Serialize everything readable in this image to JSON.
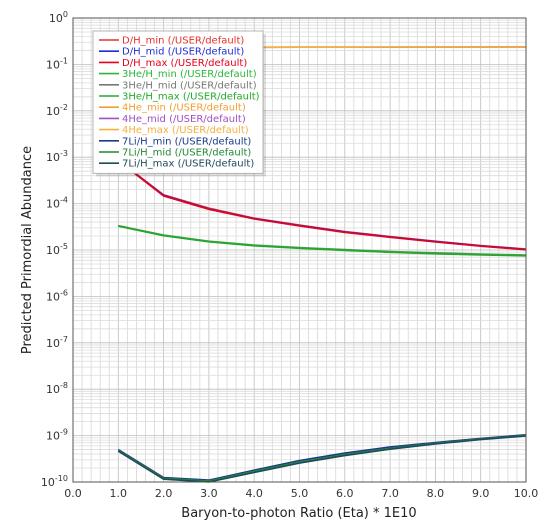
{
  "chart_data": {
    "type": "line",
    "xlabel": "Baryon-to-photon Ratio (Eta) * 1E10",
    "ylabel": "Predicted Primordial Abundance",
    "xlim": [
      0,
      10
    ],
    "ylim": [
      1e-10,
      1
    ],
    "yscale": "log",
    "grid": true,
    "legend_position": "top-left",
    "x_ticks": [
      "0.0",
      "1.0",
      "2.0",
      "3.0",
      "4.0",
      "5.0",
      "6.0",
      "7.0",
      "8.0",
      "9.0",
      "10.0"
    ],
    "y_ticks": [
      {
        "base": "10",
        "exp": "0"
      },
      {
        "base": "10",
        "exp": "-1"
      },
      {
        "base": "10",
        "exp": "-2"
      },
      {
        "base": "10",
        "exp": "-3"
      },
      {
        "base": "10",
        "exp": "-4"
      },
      {
        "base": "10",
        "exp": "-5"
      },
      {
        "base": "10",
        "exp": "-6"
      },
      {
        "base": "10",
        "exp": "-7"
      },
      {
        "base": "10",
        "exp": "-8"
      },
      {
        "base": "10",
        "exp": "-9"
      },
      {
        "base": "10",
        "exp": "-10"
      }
    ],
    "x": [
      1,
      2,
      3,
      4,
      5,
      6,
      7,
      8,
      9,
      10
    ],
    "series": [
      {
        "name": "D/H_min (/USER/default)",
        "color": "#e8302a",
        "values": [
          0.00086,
          0.000155,
          7.95e-05,
          4.85e-05,
          3.45e-05,
          2.5e-05,
          1.95e-05,
          1.55e-05,
          1.25e-05,
          1.05e-05
        ]
      },
      {
        "name": "D/H_mid (/USER/default)",
        "color": "#1f2fd6",
        "values": [
          0.00085,
          0.00015,
          7.7e-05,
          4.75e-05,
          3.35e-05,
          2.45e-05,
          1.92e-05,
          1.52e-05,
          1.23e-05,
          1.03e-05
        ]
      },
      {
        "name": "D/H_max (/USER/default)",
        "color": "#e8001c",
        "values": [
          0.00084,
          0.000146,
          7.55e-05,
          4.65e-05,
          3.3e-05,
          2.4e-05,
          1.88e-05,
          1.49e-05,
          1.21e-05,
          1.01e-05
        ]
      },
      {
        "name": "3He/H_min (/USER/default)",
        "color": "#2db53b",
        "values": [
          3.35e-05,
          2.1e-05,
          1.55e-05,
          1.28e-05,
          1.13e-05,
          1.02e-05,
          9.3e-06,
          8.7e-06,
          8.2e-06,
          7.8e-06
        ]
      },
      {
        "name": "3He/H_mid (/USER/default)",
        "color": "#777777",
        "values": [
          3.3e-05,
          2.06e-05,
          1.52e-05,
          1.25e-05,
          1.11e-05,
          1e-05,
          9.1e-06,
          8.5e-06,
          8e-06,
          7.6e-06
        ]
      },
      {
        "name": "3He/H_max (/USER/default)",
        "color": "#22aa2a",
        "values": [
          3.25e-05,
          2.03e-05,
          1.5e-05,
          1.23e-05,
          1.09e-05,
          9.8e-06,
          8.9e-06,
          8.3e-06,
          7.8e-06,
          7.5e-06
        ]
      },
      {
        "name": "4He_min (/USER/default)",
        "color": "#f0a030",
        "values": [
          0.2305,
          0.2322,
          0.2332,
          0.2339,
          0.2344,
          0.2347,
          0.235,
          0.2352,
          0.2354,
          0.2356
        ]
      },
      {
        "name": "4He_mid (/USER/default)",
        "color": "#a050c0",
        "values": [
          0.2308,
          0.2325,
          0.2335,
          0.2342,
          0.2347,
          0.235,
          0.2353,
          0.2355,
          0.2357,
          0.2359
        ]
      },
      {
        "name": "4He_max (/USER/default)",
        "color": "#f5b040",
        "values": [
          0.2311,
          0.2328,
          0.2338,
          0.2345,
          0.235,
          0.2353,
          0.2356,
          0.2358,
          0.236,
          0.2362
        ]
      },
      {
        "name": "7Li/H_min (/USER/default)",
        "color": "#1a3a8a",
        "values": [
          5e-10,
          1.25e-10,
          1.1e-10,
          1.8e-10,
          2.9e-10,
          4.2e-10,
          5.7e-10,
          7.1e-10,
          8.7e-10,
          1.04e-09
        ]
      },
      {
        "name": "7Li/H_mid (/USER/default)",
        "color": "#228833",
        "values": [
          4.8e-10,
          1.2e-10,
          1.05e-10,
          1.7e-10,
          2.7e-10,
          3.9e-10,
          5.3e-10,
          6.8e-10,
          8.4e-10,
          1e-09
        ]
      },
      {
        "name": "7Li/H_max (/USER/default)",
        "color": "#1e4a5a",
        "values": [
          4.6e-10,
          1.15e-10,
          1e-10,
          1.6e-10,
          2.55e-10,
          3.7e-10,
          5.1e-10,
          6.6e-10,
          8.2e-10,
          9.8e-10
        ]
      }
    ]
  }
}
